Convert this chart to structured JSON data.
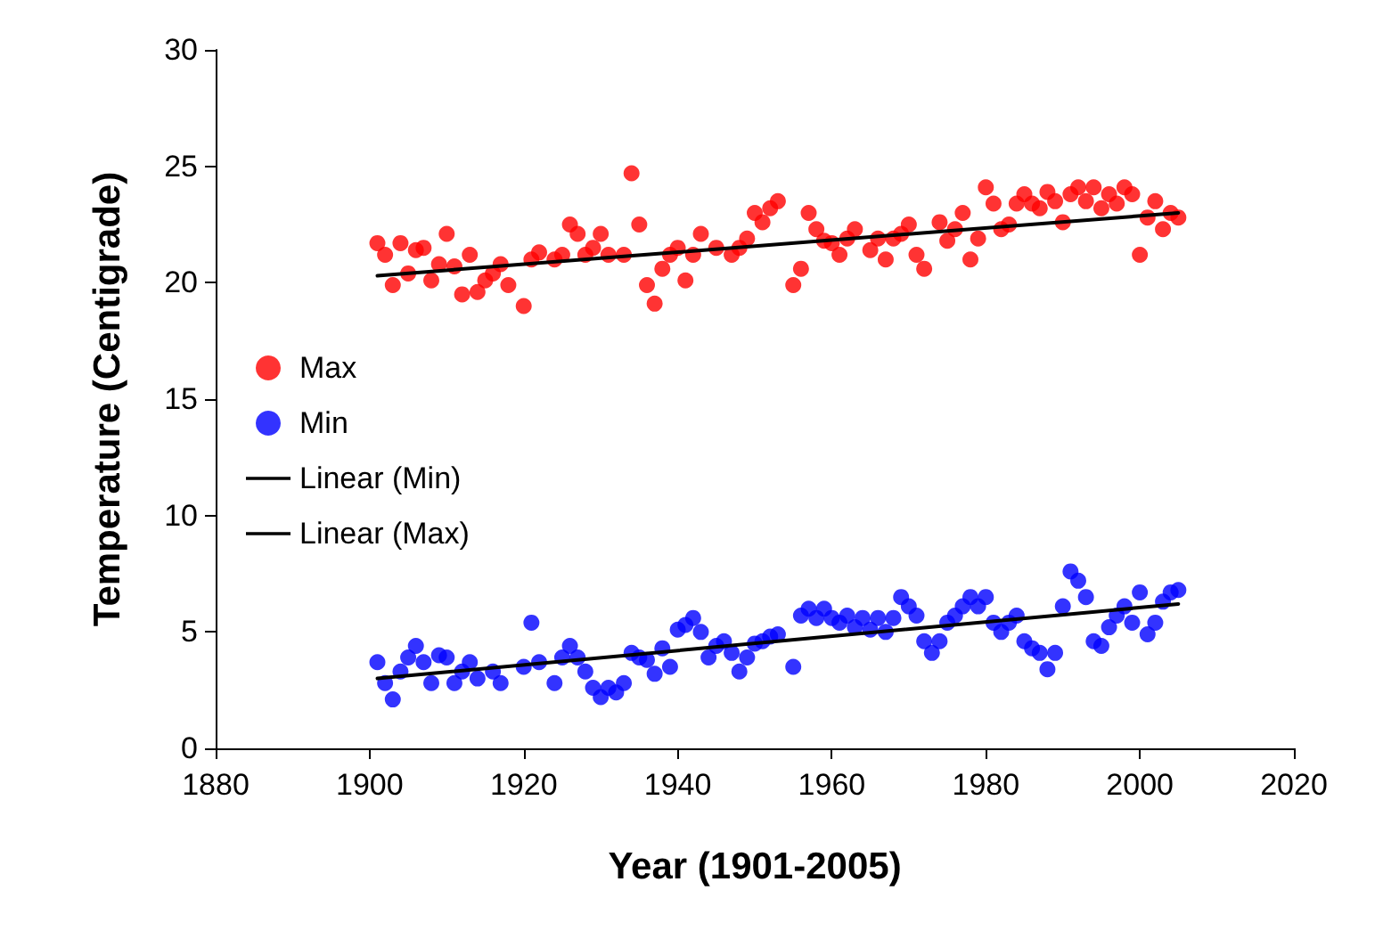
{
  "chart_data": {
    "type": "scatter",
    "xlabel": "Year (1901-2005)",
    "ylabel": "Temperature (Centigrade)",
    "xlim": [
      1880,
      2020
    ],
    "xticks": [
      1880,
      1900,
      1920,
      1940,
      1960,
      1980,
      2000,
      2020
    ],
    "ylim": [
      0,
      30
    ],
    "yticks": [
      0,
      5,
      10,
      15,
      20,
      25,
      30
    ],
    "grid": false,
    "legend": "left",
    "line_style": "solid",
    "series": [
      {
        "name": "Max",
        "color": "#ff0000",
        "marker": "circle",
        "x": [
          1901,
          1902,
          1903,
          1904,
          1905,
          1906,
          1907,
          1908,
          1909,
          1910,
          1911,
          1912,
          1913,
          1914,
          1915,
          1916,
          1917,
          1918,
          1920,
          1921,
          1922,
          1924,
          1925,
          1926,
          1927,
          1928,
          1929,
          1930,
          1931,
          1933,
          1934,
          1935,
          1936,
          1937,
          1938,
          1939,
          1940,
          1941,
          1942,
          1943,
          1945,
          1947,
          1948,
          1949,
          1950,
          1951,
          1952,
          1953,
          1955,
          1956,
          1957,
          1958,
          1959,
          1960,
          1961,
          1962,
          1963,
          1965,
          1966,
          1967,
          1968,
          1969,
          1970,
          1971,
          1972,
          1974,
          1975,
          1976,
          1977,
          1978,
          1979,
          1980,
          1981,
          1982,
          1983,
          1984,
          1985,
          1986,
          1987,
          1988,
          1989,
          1990,
          1991,
          1992,
          1993,
          1994,
          1995,
          1996,
          1997,
          1998,
          1999,
          2000,
          2001,
          2002,
          2003,
          2004,
          2005
        ],
        "values": [
          21.7,
          21.2,
          19.9,
          21.7,
          20.4,
          21.4,
          21.5,
          20.1,
          20.8,
          22.1,
          20.7,
          19.5,
          21.2,
          19.6,
          20.1,
          20.4,
          20.8,
          19.9,
          19.0,
          21.0,
          21.3,
          21.0,
          21.2,
          22.5,
          22.1,
          21.2,
          21.5,
          22.1,
          21.2,
          21.2,
          24.7,
          22.5,
          19.9,
          19.1,
          20.6,
          21.2,
          21.5,
          20.1,
          21.2,
          22.1,
          21.5,
          21.2,
          21.5,
          21.9,
          23.0,
          22.6,
          23.2,
          23.5,
          19.9,
          20.6,
          23.0,
          22.3,
          21.8,
          21.7,
          21.2,
          21.9,
          22.3,
          21.4,
          21.9,
          21.0,
          21.9,
          22.1,
          22.5,
          21.2,
          20.6,
          22.6,
          21.8,
          22.3,
          23.0,
          21.0,
          21.9,
          24.1,
          23.4,
          22.3,
          22.5,
          23.4,
          23.8,
          23.4,
          23.2,
          23.9,
          23.5,
          22.6,
          23.8,
          24.1,
          23.5,
          24.1,
          23.2,
          23.8,
          23.4,
          24.1,
          23.8,
          21.2,
          22.8,
          23.5,
          22.3,
          23.0,
          22.8
        ]
      },
      {
        "name": "Min",
        "color": "#0000ff",
        "marker": "circle",
        "x": [
          1901,
          1902,
          1903,
          1904,
          1905,
          1906,
          1907,
          1908,
          1909,
          1910,
          1911,
          1912,
          1913,
          1914,
          1916,
          1917,
          1920,
          1921,
          1922,
          1924,
          1925,
          1926,
          1927,
          1928,
          1929,
          1930,
          1931,
          1932,
          1933,
          1934,
          1935,
          1936,
          1937,
          1938,
          1939,
          1940,
          1941,
          1942,
          1943,
          1944,
          1945,
          1946,
          1947,
          1948,
          1949,
          1950,
          1951,
          1952,
          1953,
          1955,
          1956,
          1957,
          1958,
          1959,
          1960,
          1961,
          1962,
          1963,
          1964,
          1965,
          1966,
          1967,
          1968,
          1969,
          1970,
          1971,
          1972,
          1973,
          1974,
          1975,
          1976,
          1977,
          1978,
          1979,
          1980,
          1981,
          1982,
          1983,
          1984,
          1985,
          1986,
          1987,
          1988,
          1989,
          1990,
          1991,
          1992,
          1993,
          1994,
          1995,
          1996,
          1997,
          1998,
          1999,
          2000,
          2001,
          2002,
          2003,
          2004,
          2005
        ],
        "values": [
          3.7,
          2.8,
          2.1,
          3.3,
          3.9,
          4.4,
          3.7,
          2.8,
          4.0,
          3.9,
          2.8,
          3.3,
          3.7,
          3.0,
          3.3,
          2.8,
          3.5,
          5.4,
          3.7,
          2.8,
          3.9,
          4.4,
          3.9,
          3.3,
          2.6,
          2.2,
          2.6,
          2.4,
          2.8,
          4.1,
          3.9,
          3.8,
          3.2,
          4.3,
          3.5,
          5.1,
          5.3,
          5.6,
          5.0,
          3.9,
          4.4,
          4.6,
          4.1,
          3.3,
          3.9,
          4.5,
          4.6,
          4.8,
          4.9,
          3.5,
          5.7,
          6.0,
          5.6,
          6.0,
          5.6,
          5.4,
          5.7,
          5.2,
          5.6,
          5.1,
          5.6,
          5.0,
          5.6,
          6.5,
          6.1,
          5.7,
          4.6,
          4.1,
          4.6,
          5.4,
          5.7,
          6.1,
          6.5,
          6.1,
          6.5,
          5.4,
          5.0,
          5.4,
          5.7,
          4.6,
          4.3,
          4.1,
          3.4,
          4.1,
          6.1,
          7.6,
          7.2,
          6.5,
          4.6,
          4.4,
          5.2,
          5.7,
          6.1,
          5.4,
          6.7,
          4.9,
          5.4,
          6.3,
          6.7,
          6.8
        ]
      },
      {
        "name": "Linear (Min)",
        "type": "line",
        "marker": "none",
        "color": "#000000",
        "x": [
          1901,
          2005
        ],
        "values": [
          3.0,
          6.2
        ]
      },
      {
        "name": "Linear (Max)",
        "type": "line",
        "marker": "none",
        "color": "#000000",
        "x": [
          1901,
          2005
        ],
        "values": [
          20.3,
          23.0
        ]
      }
    ]
  }
}
